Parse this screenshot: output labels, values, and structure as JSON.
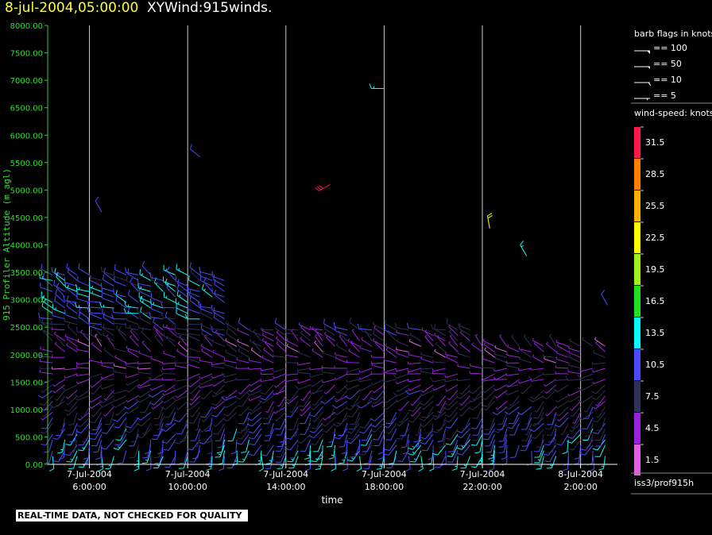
{
  "header": {
    "date": "8-jul-2004,05:00:00",
    "title": "XYWind:915winds."
  },
  "notice": "REAL-TIME DATA, NOT CHECKED FOR QUALITY",
  "legend": {
    "flags_title": "barb flags in knots",
    "flags": [
      "== 100",
      "== 50",
      "== 10",
      "== 5"
    ],
    "speed_title": "wind-speed: knots",
    "speed_bins": [
      {
        "label": "31.5",
        "color": "#ff1a4a"
      },
      {
        "label": "28.5",
        "color": "#ff8000"
      },
      {
        "label": "25.5",
        "color": "#ffb000"
      },
      {
        "label": "22.5",
        "color": "#ffff00"
      },
      {
        "label": "19.5",
        "color": "#a0f020"
      },
      {
        "label": "16.5",
        "color": "#20e020"
      },
      {
        "label": "13.5",
        "color": "#00ffff"
      },
      {
        "label": "10.5",
        "color": "#4a4aff"
      },
      {
        "label": "7.5",
        "color": "#30305a"
      },
      {
        "label": "4.5",
        "color": "#9a20e0"
      },
      {
        "label": "1.5",
        "color": "#e060e0"
      }
    ],
    "source": "iss3/prof915h"
  },
  "chart_data": {
    "type": "wind-barb",
    "ylabel": "915 Profiler Altitude (m agl)",
    "xlabel": "time",
    "ylim": [
      0,
      8000
    ],
    "y_ticks": [
      "0.00",
      "500.00",
      "1000.00",
      "1500.00",
      "2000.00",
      "2500.00",
      "3000.00",
      "3500.00",
      "4000.00",
      "4500.00",
      "5000.00",
      "5500.00",
      "6000.00",
      "6500.00",
      "7000.00",
      "7500.00",
      "8000.00"
    ],
    "x_range_hours": [
      4.3,
      27.5
    ],
    "x_ticks": [
      {
        "hour": 6,
        "line1": "7-Jul-2004",
        "line2": "6:00:00"
      },
      {
        "hour": 10,
        "line1": "7-Jul-2004",
        "line2": "10:00:00"
      },
      {
        "hour": 14,
        "line1": "7-Jul-2004",
        "line2": "14:00:00"
      },
      {
        "hour": 18,
        "line1": "7-Jul-2004",
        "line2": "18:00:00"
      },
      {
        "hour": 22,
        "line1": "7-Jul-2004",
        "line2": "22:00:00"
      },
      {
        "hour": 26,
        "line1": "8-Jul-2004",
        "line2": "2:00:00"
      }
    ],
    "profiles": {
      "time_start_hour": 4.5,
      "time_step_hours": 0.5,
      "count": 46,
      "levels_m": [
        150,
        250,
        350,
        450,
        550,
        650,
        750,
        850,
        950,
        1050,
        1150,
        1250,
        1350,
        1450,
        1550,
        1650,
        1750,
        1850,
        1950,
        2050,
        2150,
        2250,
        2350,
        2450,
        2550,
        2650,
        2750,
        2850,
        2950,
        3050,
        3150,
        3250,
        3350,
        3450
      ],
      "speed_knots_by_level": [
        12,
        12,
        11,
        11,
        10,
        10,
        9,
        9,
        8,
        8,
        7,
        7,
        7,
        6,
        6,
        6,
        5,
        5,
        5,
        5,
        5,
        6,
        7,
        8,
        9,
        10,
        11,
        12,
        12,
        12,
        12,
        11,
        11,
        11
      ],
      "direction_deg_by_level": [
        190,
        195,
        200,
        200,
        205,
        205,
        210,
        210,
        215,
        220,
        225,
        230,
        235,
        240,
        250,
        260,
        270,
        280,
        290,
        300,
        310,
        310,
        300,
        290,
        290,
        290,
        290,
        290,
        295,
        300,
        300,
        300,
        300,
        300
      ]
    },
    "upper_obs": [
      {
        "hour": 6.5,
        "alt": 4600,
        "speed": 10,
        "dir": 330
      },
      {
        "hour": 10.5,
        "alt": 5600,
        "speed": 10,
        "dir": 310
      },
      {
        "hour": 15.8,
        "alt": 5100,
        "speed": 31,
        "dir": 240
      },
      {
        "hour": 18.0,
        "alt": 6850,
        "speed": 13,
        "dir": 270
      },
      {
        "hour": 22.3,
        "alt": 4300,
        "speed": 22,
        "dir": 350
      },
      {
        "hour": 23.8,
        "alt": 3800,
        "speed": 13,
        "dir": 330
      },
      {
        "hour": 27.1,
        "alt": 2900,
        "speed": 10,
        "dir": 330
      }
    ]
  }
}
